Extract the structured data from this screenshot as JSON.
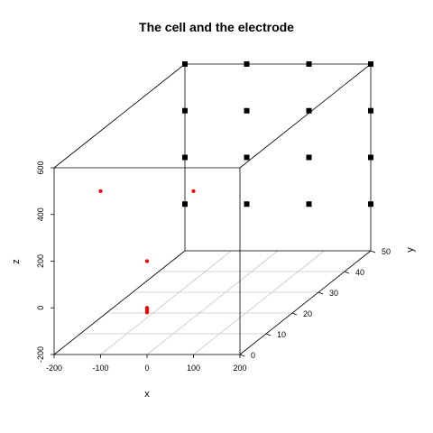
{
  "chart_data": {
    "type": "scatter",
    "subtype": "scatterplot3d",
    "title": "The cell and the electrode",
    "xlabel": "x",
    "ylabel": "y",
    "zlabel": "z",
    "xlim": [
      -200,
      200
    ],
    "ylim": [
      0,
      50
    ],
    "zlim": [
      -200,
      600
    ],
    "x_ticks": [
      "-200",
      "-100",
      "0",
      "100",
      "200"
    ],
    "y_ticks": [
      "0",
      "10",
      "20",
      "30",
      "40",
      "50"
    ],
    "z_ticks": [
      "-200",
      "0",
      "200",
      "400",
      "600"
    ],
    "grid": "on (x-y floor)",
    "box": true,
    "series": [
      {
        "color": "#ff0000",
        "marker": "circle",
        "points": [
          {
            "x": -100,
            "y": 0,
            "z": 500
          },
          {
            "x": 100,
            "y": 0,
            "z": 500
          },
          {
            "x": 0,
            "y": 0,
            "z": 200
          },
          {
            "x": 0,
            "y": 0,
            "z": 0
          },
          {
            "x": 0,
            "y": 0,
            "z": -5
          },
          {
            "x": 0,
            "y": 0,
            "z": -10
          },
          {
            "x": 0,
            "y": 0,
            "z": -15
          },
          {
            "x": 0,
            "y": 0,
            "z": -20
          }
        ]
      },
      {
        "color": "#000000",
        "marker": "square",
        "points": [
          {
            "x": 200,
            "y": 50,
            "z": 600
          },
          {
            "x": 200,
            "y": 50,
            "z": 400
          },
          {
            "x": 200,
            "y": 50,
            "z": 200
          },
          {
            "x": 200,
            "y": 50,
            "z": 0
          },
          {
            "x": 67,
            "y": 50,
            "z": 600
          },
          {
            "x": 67,
            "y": 50,
            "z": 400
          },
          {
            "x": 67,
            "y": 50,
            "z": 200
          },
          {
            "x": 67,
            "y": 50,
            "z": 0
          },
          {
            "x": -67,
            "y": 50,
            "z": 600
          },
          {
            "x": -67,
            "y": 50,
            "z": 400
          },
          {
            "x": -67,
            "y": 50,
            "z": 200
          },
          {
            "x": -67,
            "y": 50,
            "z": 0
          },
          {
            "x": -200,
            "y": 50,
            "z": 600
          },
          {
            "x": -200,
            "y": 50,
            "z": 400
          },
          {
            "x": -200,
            "y": 50,
            "z": 200
          },
          {
            "x": -200,
            "y": 50,
            "z": 0
          }
        ]
      }
    ]
  }
}
